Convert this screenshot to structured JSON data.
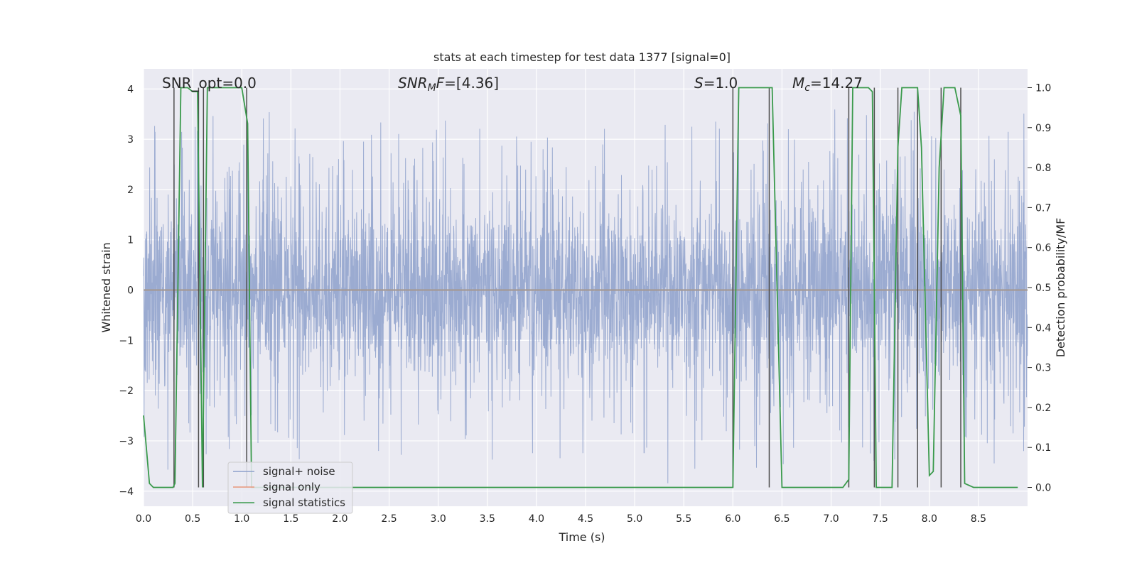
{
  "chart_data": {
    "type": "line",
    "title": "stats at each timestep for test data 1377 [signal=0]",
    "xlabel": "Time (s)",
    "ylabel_left": "Whitened strain",
    "ylabel_right": "Detection probability/MF",
    "xlim": [
      0,
      9.0
    ],
    "ylim_left": [
      -4.3,
      4.4
    ],
    "ylim_right": [
      -0.047,
      1.047
    ],
    "x_ticks": [
      0.0,
      0.5,
      1.0,
      1.5,
      2.0,
      2.5,
      3.0,
      3.5,
      4.0,
      4.5,
      5.0,
      5.5,
      6.0,
      6.5,
      7.0,
      7.5,
      8.0,
      8.5
    ],
    "x_tick_labels": [
      "0.0",
      "0.5",
      "1.0",
      "1.5",
      "2.0",
      "2.5",
      "3.0",
      "3.5",
      "4.0",
      "4.5",
      "5.0",
      "5.5",
      "6.0",
      "6.5",
      "7.0",
      "7.5",
      "8.0",
      "8.5"
    ],
    "y_left_ticks": [
      -4,
      -3,
      -2,
      -1,
      0,
      1,
      2,
      3,
      4
    ],
    "y_left_tick_labels": [
      "−4",
      "−3",
      "−2",
      "−1",
      "0",
      "1",
      "2",
      "3",
      "4"
    ],
    "y_right_ticks": [
      0.0,
      0.1,
      0.2,
      0.3,
      0.4,
      0.5,
      0.6,
      0.7,
      0.8,
      0.9,
      1.0
    ],
    "y_right_tick_labels": [
      "0.0",
      "0.1",
      "0.2",
      "0.3",
      "0.4",
      "0.5",
      "0.6",
      "0.7",
      "0.8",
      "0.9",
      "1.0"
    ],
    "grid": true,
    "legend_placement": "lower-left",
    "annotations": {
      "snr_opt": "SNR_opt=0.0",
      "snr_mf_main": "SNR",
      "snr_mf_sub": "M",
      "snr_mf_italic_tail": "F",
      "snr_mf_value": "=[4.36]",
      "s_label": "S",
      "s_value": "=1.0",
      "mc_label": "M",
      "mc_sub": "c",
      "mc_value": "=14.27"
    },
    "series": [
      {
        "name": "signal+ noise",
        "color": "#8da0cb",
        "kind": "noise",
        "noise_core_amplitude": 1.6,
        "noise_peak_max": 4.0,
        "noise_peak_min": -3.9
      },
      {
        "name": "signal only",
        "color": "#e8967a",
        "kind": "flat",
        "value": 0.0
      },
      {
        "name": "signal statistics",
        "color": "#3a9a4c",
        "axis": "right",
        "x": [
          0.0,
          0.06,
          0.1,
          0.2,
          0.3,
          0.32,
          0.38,
          0.45,
          0.5,
          0.55,
          0.58,
          0.6,
          0.65,
          0.7,
          0.9,
          1.0,
          1.06,
          1.1,
          1.2,
          1.5,
          2.0,
          3.0,
          4.0,
          5.0,
          5.9,
          6.0,
          6.06,
          6.1,
          6.2,
          6.4,
          6.45,
          6.5,
          7.0,
          7.12,
          7.18,
          7.22,
          7.3,
          7.38,
          7.42,
          7.46,
          7.55,
          7.62,
          7.68,
          7.72,
          7.78,
          7.88,
          7.92,
          8.0,
          8.04,
          8.1,
          8.15,
          8.2,
          8.26,
          8.32,
          8.36,
          8.45,
          8.9
        ],
        "y": [
          0.18,
          0.01,
          0.0,
          0.0,
          0.0,
          0.01,
          1.0,
          1.0,
          0.99,
          0.99,
          0.4,
          0.0,
          1.0,
          1.0,
          1.0,
          1.0,
          0.91,
          0.0,
          0.0,
          0.0,
          0.0,
          0.0,
          0.0,
          0.0,
          0.0,
          0.0,
          1.0,
          1.0,
          1.0,
          1.0,
          0.5,
          0.0,
          0.0,
          0.0,
          0.02,
          1.0,
          1.0,
          1.0,
          0.99,
          0.0,
          0.0,
          0.0,
          0.85,
          1.0,
          1.0,
          1.0,
          0.85,
          0.03,
          0.04,
          0.8,
          1.0,
          1.0,
          1.0,
          0.93,
          0.01,
          0.0,
          0.0
        ]
      }
    ],
    "vertical_lines": {
      "color": "#4d4d4d",
      "x": [
        0.31,
        0.56,
        0.61,
        1.05,
        6.0,
        6.37,
        7.18,
        7.44,
        7.68,
        7.88,
        8.12,
        8.32
      ]
    }
  }
}
